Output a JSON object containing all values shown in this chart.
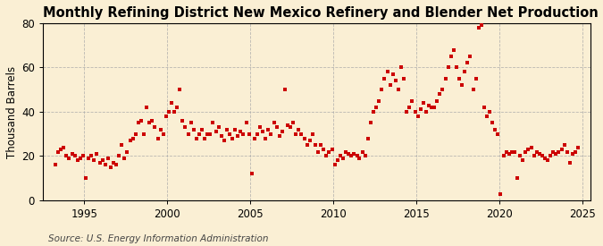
{
  "title": "Monthly Refining District New Mexico Refinery and Blender Net Production of Petroleum Coke",
  "ylabel": "Thousand Barrels",
  "source": "Source: U.S. Energy Information Administration",
  "background_color": "#faefd4",
  "marker_color": "#cc0000",
  "marker": "s",
  "marker_size": 3.0,
  "xlim": [
    1992.5,
    2025.5
  ],
  "ylim": [
    0,
    80
  ],
  "yticks": [
    0,
    20,
    40,
    60,
    80
  ],
  "xticks": [
    1995,
    2000,
    2005,
    2010,
    2015,
    2020,
    2025
  ],
  "title_fontsize": 10.5,
  "ylabel_fontsize": 8.5,
  "source_fontsize": 7.5,
  "tick_fontsize": 8.5,
  "data": [
    [
      1993.25,
      16
    ],
    [
      1993.42,
      22
    ],
    [
      1993.58,
      23
    ],
    [
      1993.75,
      24
    ],
    [
      1993.92,
      20
    ],
    [
      1994.08,
      19
    ],
    [
      1994.25,
      21
    ],
    [
      1994.42,
      20
    ],
    [
      1994.58,
      18
    ],
    [
      1994.75,
      19
    ],
    [
      1994.92,
      20
    ],
    [
      1995.08,
      10
    ],
    [
      1995.25,
      19
    ],
    [
      1995.42,
      20
    ],
    [
      1995.58,
      18
    ],
    [
      1995.75,
      21
    ],
    [
      1995.92,
      17
    ],
    [
      1996.08,
      18
    ],
    [
      1996.25,
      16
    ],
    [
      1996.42,
      19
    ],
    [
      1996.58,
      15
    ],
    [
      1996.75,
      17
    ],
    [
      1996.92,
      16
    ],
    [
      1997.08,
      20
    ],
    [
      1997.25,
      25
    ],
    [
      1997.42,
      19
    ],
    [
      1997.58,
      22
    ],
    [
      1997.75,
      27
    ],
    [
      1997.92,
      28
    ],
    [
      1998.08,
      30
    ],
    [
      1998.25,
      35
    ],
    [
      1998.42,
      36
    ],
    [
      1998.58,
      30
    ],
    [
      1998.75,
      42
    ],
    [
      1998.92,
      35
    ],
    [
      1999.08,
      36
    ],
    [
      1999.25,
      33
    ],
    [
      1999.42,
      28
    ],
    [
      1999.58,
      32
    ],
    [
      1999.75,
      30
    ],
    [
      1999.92,
      38
    ],
    [
      2000.08,
      40
    ],
    [
      2000.25,
      44
    ],
    [
      2000.42,
      40
    ],
    [
      2000.58,
      42
    ],
    [
      2000.75,
      50
    ],
    [
      2000.92,
      36
    ],
    [
      2001.08,
      33
    ],
    [
      2001.25,
      30
    ],
    [
      2001.42,
      35
    ],
    [
      2001.58,
      32
    ],
    [
      2001.75,
      28
    ],
    [
      2001.92,
      30
    ],
    [
      2002.08,
      32
    ],
    [
      2002.25,
      28
    ],
    [
      2002.42,
      30
    ],
    [
      2002.58,
      30
    ],
    [
      2002.75,
      35
    ],
    [
      2002.92,
      31
    ],
    [
      2003.08,
      33
    ],
    [
      2003.25,
      29
    ],
    [
      2003.42,
      27
    ],
    [
      2003.58,
      32
    ],
    [
      2003.75,
      30
    ],
    [
      2003.92,
      28
    ],
    [
      2004.08,
      32
    ],
    [
      2004.25,
      29
    ],
    [
      2004.42,
      31
    ],
    [
      2004.58,
      30
    ],
    [
      2004.75,
      35
    ],
    [
      2004.92,
      30
    ],
    [
      2005.08,
      12
    ],
    [
      2005.25,
      28
    ],
    [
      2005.42,
      30
    ],
    [
      2005.58,
      33
    ],
    [
      2005.75,
      31
    ],
    [
      2005.92,
      28
    ],
    [
      2006.08,
      32
    ],
    [
      2006.25,
      30
    ],
    [
      2006.42,
      35
    ],
    [
      2006.58,
      33
    ],
    [
      2006.75,
      29
    ],
    [
      2006.92,
      31
    ],
    [
      2007.08,
      50
    ],
    [
      2007.25,
      34
    ],
    [
      2007.42,
      33
    ],
    [
      2007.58,
      35
    ],
    [
      2007.75,
      30
    ],
    [
      2007.92,
      32
    ],
    [
      2008.08,
      30
    ],
    [
      2008.25,
      28
    ],
    [
      2008.42,
      25
    ],
    [
      2008.58,
      27
    ],
    [
      2008.75,
      30
    ],
    [
      2008.92,
      25
    ],
    [
      2009.08,
      22
    ],
    [
      2009.25,
      25
    ],
    [
      2009.42,
      23
    ],
    [
      2009.58,
      20
    ],
    [
      2009.75,
      22
    ],
    [
      2009.92,
      23
    ],
    [
      2010.08,
      16
    ],
    [
      2010.25,
      18
    ],
    [
      2010.42,
      20
    ],
    [
      2010.58,
      19
    ],
    [
      2010.75,
      22
    ],
    [
      2010.92,
      21
    ],
    [
      2011.08,
      20
    ],
    [
      2011.25,
      21
    ],
    [
      2011.42,
      20
    ],
    [
      2011.58,
      19
    ],
    [
      2011.75,
      22
    ],
    [
      2011.92,
      20
    ],
    [
      2012.08,
      28
    ],
    [
      2012.25,
      35
    ],
    [
      2012.42,
      40
    ],
    [
      2012.58,
      42
    ],
    [
      2012.75,
      45
    ],
    [
      2012.92,
      50
    ],
    [
      2013.08,
      55
    ],
    [
      2013.25,
      58
    ],
    [
      2013.42,
      52
    ],
    [
      2013.58,
      57
    ],
    [
      2013.75,
      54
    ],
    [
      2013.92,
      50
    ],
    [
      2014.08,
      60
    ],
    [
      2014.25,
      55
    ],
    [
      2014.42,
      40
    ],
    [
      2014.58,
      42
    ],
    [
      2014.75,
      45
    ],
    [
      2014.92,
      40
    ],
    [
      2015.08,
      38
    ],
    [
      2015.25,
      41
    ],
    [
      2015.42,
      44
    ],
    [
      2015.58,
      40
    ],
    [
      2015.75,
      43
    ],
    [
      2015.92,
      42
    ],
    [
      2016.08,
      42
    ],
    [
      2016.25,
      45
    ],
    [
      2016.42,
      48
    ],
    [
      2016.58,
      50
    ],
    [
      2016.75,
      55
    ],
    [
      2016.92,
      60
    ],
    [
      2017.08,
      65
    ],
    [
      2017.25,
      68
    ],
    [
      2017.42,
      60
    ],
    [
      2017.58,
      55
    ],
    [
      2017.75,
      52
    ],
    [
      2017.92,
      58
    ],
    [
      2018.08,
      62
    ],
    [
      2018.25,
      65
    ],
    [
      2018.42,
      50
    ],
    [
      2018.58,
      55
    ],
    [
      2018.75,
      78
    ],
    [
      2018.92,
      79
    ],
    [
      2019.08,
      42
    ],
    [
      2019.25,
      38
    ],
    [
      2019.42,
      40
    ],
    [
      2019.58,
      35
    ],
    [
      2019.75,
      32
    ],
    [
      2019.92,
      30
    ],
    [
      2020.08,
      3
    ],
    [
      2020.25,
      20
    ],
    [
      2020.42,
      22
    ],
    [
      2020.58,
      21
    ],
    [
      2020.75,
      22
    ],
    [
      2020.92,
      22
    ],
    [
      2021.08,
      10
    ],
    [
      2021.25,
      20
    ],
    [
      2021.42,
      18
    ],
    [
      2021.58,
      22
    ],
    [
      2021.75,
      23
    ],
    [
      2021.92,
      24
    ],
    [
      2022.08,
      20
    ],
    [
      2022.25,
      22
    ],
    [
      2022.42,
      21
    ],
    [
      2022.58,
      20
    ],
    [
      2022.75,
      19
    ],
    [
      2022.92,
      18
    ],
    [
      2023.08,
      20
    ],
    [
      2023.25,
      22
    ],
    [
      2023.42,
      21
    ],
    [
      2023.58,
      22
    ],
    [
      2023.75,
      23
    ],
    [
      2023.92,
      25
    ],
    [
      2024.08,
      22
    ],
    [
      2024.25,
      17
    ],
    [
      2024.42,
      21
    ],
    [
      2024.58,
      22
    ],
    [
      2024.75,
      24
    ]
  ]
}
